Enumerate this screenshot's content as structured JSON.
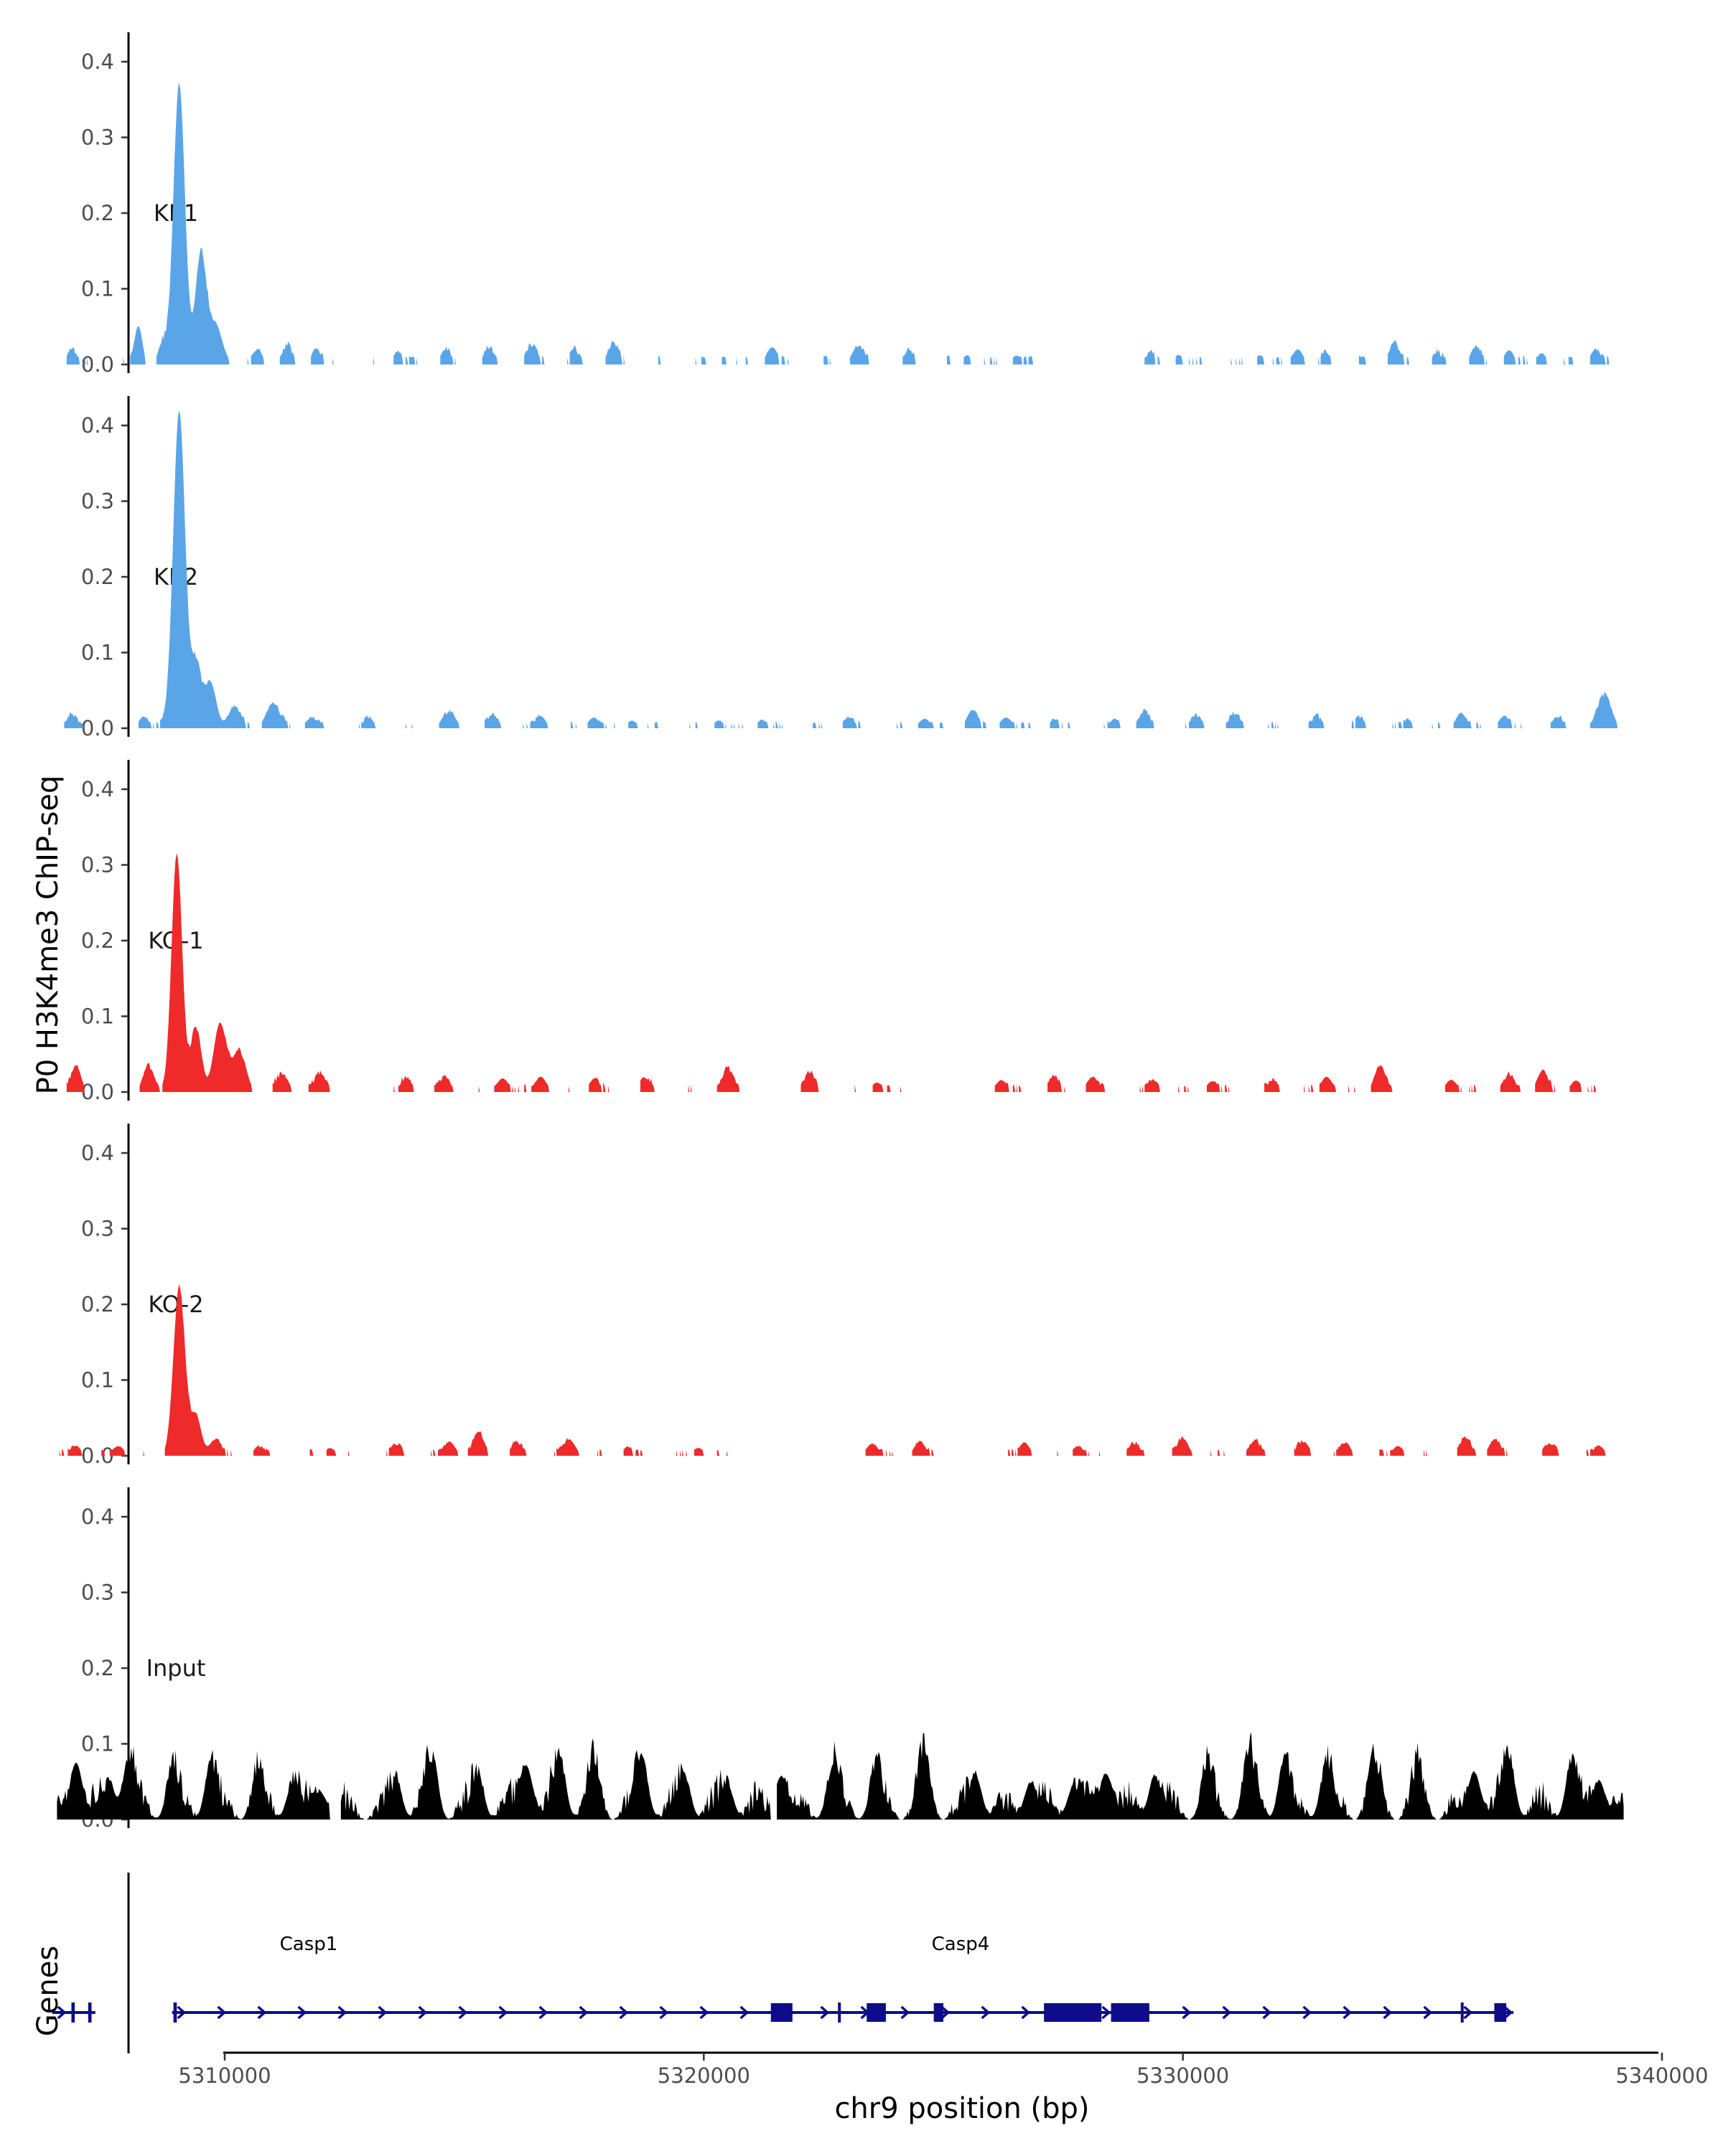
{
  "chart_data": {
    "type": "area",
    "description": "Genome browser style coverage tracks with gene annotation",
    "ylabel": "P0 H3K4me3 ChIP-seq",
    "xlabel": "chr9 position (bp)",
    "xlim": [
      5304500,
      5340500
    ],
    "x_ticks": [
      5310000,
      5320000,
      5330000,
      5340000
    ],
    "x_tick_labels": [
      "5310000",
      "5320000",
      "5330000",
      "5340000"
    ],
    "ylim": [
      0,
      0.43
    ],
    "y_ticks": [
      0.0,
      0.1,
      0.2,
      0.3,
      0.4
    ],
    "y_tick_labels": [
      "0.0",
      "0.1",
      "0.2",
      "0.3",
      "0.4"
    ],
    "colors": {
      "KI": "#5aa5e8",
      "KO": "#ee2a2a",
      "Input": "#000000",
      "gene": "#0d0d8a",
      "axis": "#000000"
    },
    "tracks": [
      {
        "name": "KI-1",
        "color": "#5aa5e8",
        "background_level": 0.008,
        "peaks": [
          [
            5306800,
            0.018,
            90
          ],
          [
            5308200,
            0.05,
            80
          ],
          [
            5308700,
            0.022,
            70
          ],
          [
            5309050,
            0.37,
            120
          ],
          [
            5309500,
            0.14,
            110
          ],
          [
            5309800,
            0.05,
            150
          ],
          [
            5310700,
            0.018,
            90
          ],
          [
            5311300,
            0.02,
            90
          ],
          [
            5311900,
            0.02,
            90
          ],
          [
            5313600,
            0.016,
            90
          ],
          [
            5314600,
            0.016,
            90
          ],
          [
            5315500,
            0.018,
            90
          ],
          [
            5316400,
            0.02,
            120
          ],
          [
            5317300,
            0.014,
            90
          ],
          [
            5318100,
            0.022,
            110
          ],
          [
            5320400,
            0.01,
            90
          ],
          [
            5321400,
            0.02,
            100
          ],
          [
            5323200,
            0.02,
            110
          ],
          [
            5324300,
            0.012,
            90
          ],
          [
            5325500,
            0.012,
            90
          ],
          [
            5326500,
            0.01,
            90
          ],
          [
            5329300,
            0.01,
            90
          ],
          [
            5329900,
            0.012,
            90
          ],
          [
            5331600,
            0.012,
            90
          ],
          [
            5332400,
            0.02,
            100
          ],
          [
            5333000,
            0.012,
            90
          ],
          [
            5334400,
            0.025,
            100
          ],
          [
            5335300,
            0.012,
            90
          ],
          [
            5336100,
            0.02,
            100
          ],
          [
            5336800,
            0.018,
            100
          ],
          [
            5337500,
            0.014,
            90
          ],
          [
            5338600,
            0.018,
            100
          ]
        ],
        "gaps": [
          [
            5312300,
            5312900
          ],
          [
            5319100,
            5319700
          ],
          [
            5326900,
            5328900
          ]
        ]
      },
      {
        "name": "KI-2",
        "color": "#5aa5e8",
        "background_level": 0.006,
        "peaks": [
          [
            5306800,
            0.015,
            90
          ],
          [
            5308300,
            0.015,
            90
          ],
          [
            5309050,
            0.42,
            125
          ],
          [
            5309400,
            0.08,
            100
          ],
          [
            5309700,
            0.06,
            120
          ],
          [
            5310200,
            0.025,
            130
          ],
          [
            5311000,
            0.03,
            140
          ],
          [
            5311800,
            0.012,
            120
          ],
          [
            5313000,
            0.01,
            100
          ],
          [
            5314700,
            0.018,
            120
          ],
          [
            5315600,
            0.014,
            110
          ],
          [
            5316600,
            0.015,
            100
          ],
          [
            5317700,
            0.014,
            110
          ],
          [
            5318500,
            0.01,
            100
          ],
          [
            5320300,
            0.01,
            90
          ],
          [
            5321200,
            0.01,
            90
          ],
          [
            5323000,
            0.012,
            110
          ],
          [
            5324600,
            0.012,
            110
          ],
          [
            5325600,
            0.022,
            110
          ],
          [
            5326300,
            0.014,
            110
          ],
          [
            5327300,
            0.01,
            90
          ],
          [
            5328600,
            0.01,
            90
          ],
          [
            5329200,
            0.018,
            110
          ],
          [
            5330300,
            0.014,
            110
          ],
          [
            5331100,
            0.016,
            110
          ],
          [
            5332800,
            0.012,
            90
          ],
          [
            5333700,
            0.01,
            90
          ],
          [
            5334700,
            0.01,
            90
          ],
          [
            5335800,
            0.02,
            100
          ],
          [
            5336700,
            0.015,
            110
          ],
          [
            5337800,
            0.012,
            90
          ],
          [
            5338800,
            0.04,
            140
          ]
        ],
        "gaps": [
          [
            5307300,
            5307900
          ]
        ]
      },
      {
        "name": "KO-1",
        "color": "#ee2a2a",
        "background_level": 0.007,
        "peaks": [
          [
            5306900,
            0.032,
            100
          ],
          [
            5308400,
            0.03,
            100
          ],
          [
            5309000,
            0.315,
            110
          ],
          [
            5309400,
            0.08,
            110
          ],
          [
            5309900,
            0.09,
            130
          ],
          [
            5310300,
            0.05,
            140
          ],
          [
            5311200,
            0.02,
            120
          ],
          [
            5312000,
            0.02,
            120
          ],
          [
            5313800,
            0.015,
            110
          ],
          [
            5314600,
            0.016,
            110
          ],
          [
            5315800,
            0.018,
            110
          ],
          [
            5316600,
            0.02,
            110
          ],
          [
            5317700,
            0.015,
            100
          ],
          [
            5318800,
            0.014,
            110
          ],
          [
            5320500,
            0.025,
            120
          ],
          [
            5322200,
            0.02,
            110
          ],
          [
            5323600,
            0.012,
            100
          ],
          [
            5326200,
            0.015,
            110
          ],
          [
            5327300,
            0.016,
            110
          ],
          [
            5328100,
            0.016,
            110
          ],
          [
            5329400,
            0.014,
            110
          ],
          [
            5330600,
            0.012,
            110
          ],
          [
            5331900,
            0.012,
            110
          ],
          [
            5333000,
            0.02,
            110
          ],
          [
            5334100,
            0.03,
            110
          ],
          [
            5335600,
            0.016,
            110
          ],
          [
            5336800,
            0.018,
            110
          ],
          [
            5337500,
            0.026,
            110
          ],
          [
            5338200,
            0.015,
            100
          ]
        ],
        "gaps": [
          [
            5307600,
            5308200
          ],
          [
            5312600,
            5313200
          ],
          [
            5321000,
            5321700
          ],
          [
            5324500,
            5325800
          ],
          [
            5334700,
            5335300
          ]
        ]
      },
      {
        "name": "KO-2",
        "color": "#ee2a2a",
        "background_level": 0.006,
        "peaks": [
          [
            5306900,
            0.012,
            100
          ],
          [
            5307800,
            0.012,
            100
          ],
          [
            5309050,
            0.22,
            120
          ],
          [
            5309400,
            0.05,
            110
          ],
          [
            5309800,
            0.02,
            120
          ],
          [
            5310700,
            0.01,
            100
          ],
          [
            5312200,
            0.01,
            100
          ],
          [
            5313600,
            0.012,
            100
          ],
          [
            5314700,
            0.018,
            110
          ],
          [
            5315300,
            0.028,
            110
          ],
          [
            5316100,
            0.014,
            110
          ],
          [
            5317200,
            0.02,
            120
          ],
          [
            5318400,
            0.01,
            100
          ],
          [
            5319900,
            0.01,
            100
          ],
          [
            5323500,
            0.015,
            110
          ],
          [
            5324500,
            0.016,
            110
          ],
          [
            5326700,
            0.016,
            110
          ],
          [
            5327800,
            0.012,
            110
          ],
          [
            5329000,
            0.012,
            110
          ],
          [
            5330000,
            0.02,
            110
          ],
          [
            5331500,
            0.016,
            110
          ],
          [
            5332500,
            0.014,
            110
          ],
          [
            5333400,
            0.012,
            110
          ],
          [
            5334500,
            0.012,
            110
          ],
          [
            5335900,
            0.02,
            110
          ],
          [
            5336500,
            0.02,
            110
          ],
          [
            5337700,
            0.012,
            110
          ],
          [
            5338700,
            0.01,
            110
          ]
        ],
        "gaps": [
          [
            5320800,
            5323100
          ],
          [
            5325000,
            5325900
          ]
        ]
      },
      {
        "name": "Input",
        "color": "#000000",
        "background_level": 0.035,
        "peaks": [
          [
            5306900,
            0.075,
            120
          ],
          [
            5307600,
            0.04,
            110
          ],
          [
            5308000,
            0.07,
            140
          ],
          [
            5308900,
            0.055,
            120
          ],
          [
            5309700,
            0.065,
            120
          ],
          [
            5310700,
            0.05,
            120
          ],
          [
            5311400,
            0.04,
            120
          ],
          [
            5312000,
            0.035,
            140
          ],
          [
            5313600,
            0.04,
            120
          ],
          [
            5314300,
            0.065,
            130
          ],
          [
            5315300,
            0.05,
            120
          ],
          [
            5316300,
            0.07,
            130
          ],
          [
            5317000,
            0.065,
            130
          ],
          [
            5317700,
            0.06,
            120
          ],
          [
            5318700,
            0.065,
            140
          ],
          [
            5319600,
            0.05,
            130
          ],
          [
            5320500,
            0.04,
            130
          ],
          [
            5321600,
            0.055,
            130
          ],
          [
            5322700,
            0.06,
            130
          ],
          [
            5323600,
            0.05,
            130
          ],
          [
            5324600,
            0.065,
            120
          ],
          [
            5325700,
            0.05,
            120
          ],
          [
            5326800,
            0.045,
            120
          ],
          [
            5327700,
            0.04,
            120
          ],
          [
            5328400,
            0.06,
            130
          ],
          [
            5329400,
            0.055,
            120
          ],
          [
            5330500,
            0.05,
            120
          ],
          [
            5331400,
            0.065,
            130
          ],
          [
            5332100,
            0.06,
            120
          ],
          [
            5333000,
            0.06,
            130
          ],
          [
            5334000,
            0.055,
            120
          ],
          [
            5334900,
            0.05,
            120
          ],
          [
            5336100,
            0.06,
            120
          ],
          [
            5336800,
            0.075,
            130
          ],
          [
            5338100,
            0.065,
            120
          ],
          [
            5338700,
            0.05,
            120
          ]
        ],
        "gaps": [
          [
            5312200,
            5312400
          ],
          [
            5321400,
            5321500
          ]
        ]
      }
    ],
    "genes": {
      "track_label": "Genes",
      "items": [
        {
          "name": "Casp1",
          "start": 5306400,
          "end": 5307300,
          "strand": "+",
          "exons": [
            [
              5306800,
              5306870
            ],
            [
              5307150,
              5307220
            ]
          ]
        },
        {
          "name": "Casp4",
          "start": 5308900,
          "end": 5336900,
          "strand": "+",
          "exons": [
            [
              5308930,
              5309000
            ],
            [
              5321400,
              5321850
            ],
            [
              5322800,
              5322860
            ],
            [
              5323400,
              5323800
            ],
            [
              5324800,
              5325000
            ],
            [
              5327100,
              5328300
            ],
            [
              5328500,
              5329300
            ],
            [
              5335800,
              5335860
            ],
            [
              5336500,
              5336750
            ]
          ]
        }
      ]
    }
  }
}
